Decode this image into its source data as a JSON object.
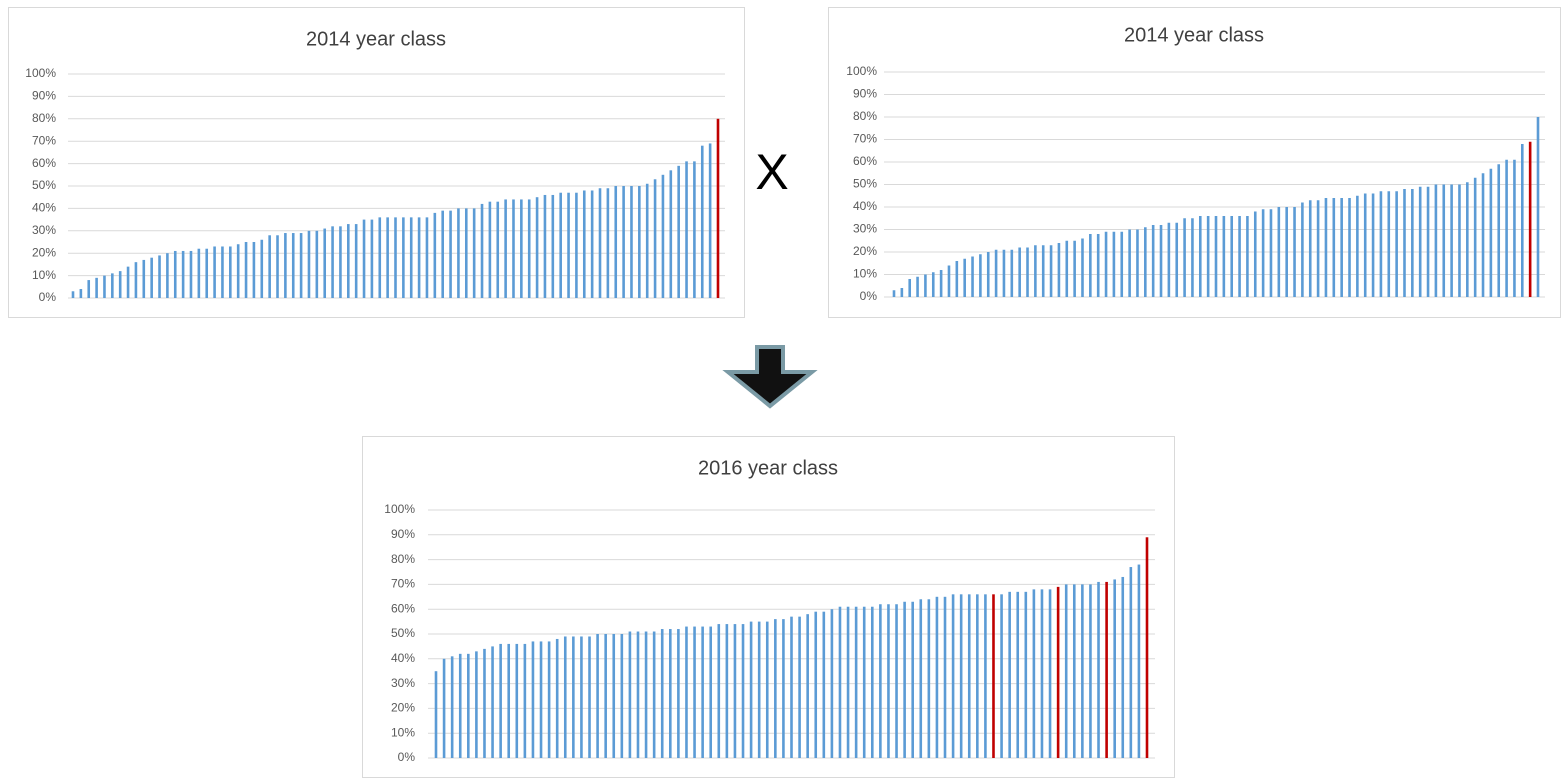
{
  "operator": "X",
  "chart_data": [
    {
      "type": "bar",
      "title": "2014 year class",
      "values": [
        3,
        4,
        8,
        9,
        10,
        11,
        12,
        14,
        16,
        17,
        18,
        19,
        20,
        21,
        21,
        21,
        22,
        22,
        23,
        23,
        23,
        24,
        25,
        25,
        26,
        28,
        28,
        29,
        29,
        29,
        30,
        30,
        31,
        32,
        32,
        33,
        33,
        35,
        35,
        36,
        36,
        36,
        36,
        36,
        36,
        36,
        38,
        39,
        39,
        40,
        40,
        40,
        42,
        43,
        43,
        44,
        44,
        44,
        44,
        45,
        46,
        46,
        47,
        47,
        47,
        48,
        48,
        49,
        49,
        50,
        50,
        50,
        50,
        51,
        53,
        55,
        57,
        59,
        61,
        61,
        68,
        69,
        80
      ],
      "colors": [
        "#5b9bd5",
        "#5b9bd5",
        "#5b9bd5",
        "#5b9bd5",
        "#5b9bd5",
        "#5b9bd5",
        "#5b9bd5",
        "#5b9bd5",
        "#5b9bd5",
        "#5b9bd5",
        "#5b9bd5",
        "#5b9bd5",
        "#5b9bd5",
        "#5b9bd5",
        "#5b9bd5",
        "#5b9bd5",
        "#5b9bd5",
        "#5b9bd5",
        "#5b9bd5",
        "#5b9bd5",
        "#5b9bd5",
        "#5b9bd5",
        "#5b9bd5",
        "#5b9bd5",
        "#5b9bd5",
        "#5b9bd5",
        "#5b9bd5",
        "#5b9bd5",
        "#5b9bd5",
        "#5b9bd5",
        "#5b9bd5",
        "#5b9bd5",
        "#5b9bd5",
        "#5b9bd5",
        "#5b9bd5",
        "#5b9bd5",
        "#5b9bd5",
        "#5b9bd5",
        "#5b9bd5",
        "#5b9bd5",
        "#5b9bd5",
        "#5b9bd5",
        "#5b9bd5",
        "#5b9bd5",
        "#5b9bd5",
        "#5b9bd5",
        "#5b9bd5",
        "#5b9bd5",
        "#5b9bd5",
        "#5b9bd5",
        "#5b9bd5",
        "#5b9bd5",
        "#5b9bd5",
        "#5b9bd5",
        "#5b9bd5",
        "#5b9bd5",
        "#5b9bd5",
        "#5b9bd5",
        "#5b9bd5",
        "#5b9bd5",
        "#5b9bd5",
        "#5b9bd5",
        "#5b9bd5",
        "#5b9bd5",
        "#5b9bd5",
        "#5b9bd5",
        "#5b9bd5",
        "#5b9bd5",
        "#5b9bd5",
        "#5b9bd5",
        "#5b9bd5",
        "#5b9bd5",
        "#5b9bd5",
        "#5b9bd5",
        "#5b9bd5",
        "#5b9bd5",
        "#5b9bd5",
        "#5b9bd5",
        "#5b9bd5",
        "#5b9bd5",
        "#5b9bd5",
        "#5b9bd5",
        "#c00000"
      ],
      "ylim": [
        0,
        100
      ],
      "yticks": [
        {
          "value": 0,
          "label": "0%"
        },
        {
          "value": 10,
          "label": "10%"
        },
        {
          "value": 20,
          "label": "20%"
        },
        {
          "value": 30,
          "label": "30%"
        },
        {
          "value": 40,
          "label": "40%"
        },
        {
          "value": 50,
          "label": "50%"
        },
        {
          "value": 60,
          "label": "60%"
        },
        {
          "value": 70,
          "label": "70%"
        },
        {
          "value": 80,
          "label": "80%"
        },
        {
          "value": 90,
          "label": "90%"
        },
        {
          "value": 100,
          "label": "100%"
        }
      ],
      "grid": true
    },
    {
      "type": "bar",
      "title": "2014 year class",
      "values": [
        3,
        4,
        8,
        9,
        10,
        11,
        12,
        14,
        16,
        17,
        18,
        19,
        20,
        21,
        21,
        21,
        22,
        22,
        23,
        23,
        23,
        24,
        25,
        25,
        26,
        28,
        28,
        29,
        29,
        29,
        30,
        30,
        31,
        32,
        32,
        33,
        33,
        35,
        35,
        36,
        36,
        36,
        36,
        36,
        36,
        36,
        38,
        39,
        39,
        40,
        40,
        40,
        42,
        43,
        43,
        44,
        44,
        44,
        44,
        45,
        46,
        46,
        47,
        47,
        47,
        48,
        48,
        49,
        49,
        50,
        50,
        50,
        50,
        51,
        53,
        55,
        57,
        59,
        61,
        61,
        68,
        69,
        80
      ],
      "colors": [
        "#5b9bd5",
        "#5b9bd5",
        "#5b9bd5",
        "#5b9bd5",
        "#5b9bd5",
        "#5b9bd5",
        "#5b9bd5",
        "#5b9bd5",
        "#5b9bd5",
        "#5b9bd5",
        "#5b9bd5",
        "#5b9bd5",
        "#5b9bd5",
        "#5b9bd5",
        "#5b9bd5",
        "#5b9bd5",
        "#5b9bd5",
        "#5b9bd5",
        "#5b9bd5",
        "#5b9bd5",
        "#5b9bd5",
        "#5b9bd5",
        "#5b9bd5",
        "#5b9bd5",
        "#5b9bd5",
        "#5b9bd5",
        "#5b9bd5",
        "#5b9bd5",
        "#5b9bd5",
        "#5b9bd5",
        "#5b9bd5",
        "#5b9bd5",
        "#5b9bd5",
        "#5b9bd5",
        "#5b9bd5",
        "#5b9bd5",
        "#5b9bd5",
        "#5b9bd5",
        "#5b9bd5",
        "#5b9bd5",
        "#5b9bd5",
        "#5b9bd5",
        "#5b9bd5",
        "#5b9bd5",
        "#5b9bd5",
        "#5b9bd5",
        "#5b9bd5",
        "#5b9bd5",
        "#5b9bd5",
        "#5b9bd5",
        "#5b9bd5",
        "#5b9bd5",
        "#5b9bd5",
        "#5b9bd5",
        "#5b9bd5",
        "#5b9bd5",
        "#5b9bd5",
        "#5b9bd5",
        "#5b9bd5",
        "#5b9bd5",
        "#5b9bd5",
        "#5b9bd5",
        "#5b9bd5",
        "#5b9bd5",
        "#5b9bd5",
        "#5b9bd5",
        "#5b9bd5",
        "#5b9bd5",
        "#5b9bd5",
        "#5b9bd5",
        "#5b9bd5",
        "#5b9bd5",
        "#5b9bd5",
        "#5b9bd5",
        "#5b9bd5",
        "#5b9bd5",
        "#5b9bd5",
        "#5b9bd5",
        "#5b9bd5",
        "#5b9bd5",
        "#5b9bd5",
        "#c00000",
        "#5b9bd5"
      ],
      "ylim": [
        0,
        100
      ],
      "yticks": [
        {
          "value": 0,
          "label": "0%"
        },
        {
          "value": 10,
          "label": "10%"
        },
        {
          "value": 20,
          "label": "20%"
        },
        {
          "value": 30,
          "label": "30%"
        },
        {
          "value": 40,
          "label": "40%"
        },
        {
          "value": 50,
          "label": "50%"
        },
        {
          "value": 60,
          "label": "60%"
        },
        {
          "value": 70,
          "label": "70%"
        },
        {
          "value": 80,
          "label": "80%"
        },
        {
          "value": 90,
          "label": "90%"
        },
        {
          "value": 100,
          "label": "100%"
        }
      ],
      "grid": true
    },
    {
      "type": "bar",
      "title": "2016 year class",
      "values": [
        35,
        40,
        41,
        42,
        42,
        43,
        44,
        45,
        46,
        46,
        46,
        46,
        47,
        47,
        47,
        48,
        49,
        49,
        49,
        49,
        50,
        50,
        50,
        50,
        51,
        51,
        51,
        51,
        52,
        52,
        52,
        53,
        53,
        53,
        53,
        54,
        54,
        54,
        54,
        55,
        55,
        55,
        56,
        56,
        57,
        57,
        58,
        59,
        59,
        60,
        61,
        61,
        61,
        61,
        61,
        62,
        62,
        62,
        63,
        63,
        64,
        64,
        65,
        65,
        66,
        66,
        66,
        66,
        66,
        66,
        66,
        67,
        67,
        67,
        68,
        68,
        68,
        69,
        70,
        70,
        70,
        70,
        71,
        71,
        72,
        73,
        77,
        78,
        89
      ],
      "colors": [
        "#5b9bd5",
        "#5b9bd5",
        "#5b9bd5",
        "#5b9bd5",
        "#5b9bd5",
        "#5b9bd5",
        "#5b9bd5",
        "#5b9bd5",
        "#5b9bd5",
        "#5b9bd5",
        "#5b9bd5",
        "#5b9bd5",
        "#5b9bd5",
        "#5b9bd5",
        "#5b9bd5",
        "#5b9bd5",
        "#5b9bd5",
        "#5b9bd5",
        "#5b9bd5",
        "#5b9bd5",
        "#5b9bd5",
        "#5b9bd5",
        "#5b9bd5",
        "#5b9bd5",
        "#5b9bd5",
        "#5b9bd5",
        "#5b9bd5",
        "#5b9bd5",
        "#5b9bd5",
        "#5b9bd5",
        "#5b9bd5",
        "#5b9bd5",
        "#5b9bd5",
        "#5b9bd5",
        "#5b9bd5",
        "#5b9bd5",
        "#5b9bd5",
        "#5b9bd5",
        "#5b9bd5",
        "#5b9bd5",
        "#5b9bd5",
        "#5b9bd5",
        "#5b9bd5",
        "#5b9bd5",
        "#5b9bd5",
        "#5b9bd5",
        "#5b9bd5",
        "#5b9bd5",
        "#5b9bd5",
        "#5b9bd5",
        "#5b9bd5",
        "#5b9bd5",
        "#5b9bd5",
        "#5b9bd5",
        "#5b9bd5",
        "#5b9bd5",
        "#5b9bd5",
        "#5b9bd5",
        "#5b9bd5",
        "#5b9bd5",
        "#5b9bd5",
        "#5b9bd5",
        "#5b9bd5",
        "#5b9bd5",
        "#5b9bd5",
        "#5b9bd5",
        "#5b9bd5",
        "#5b9bd5",
        "#5b9bd5",
        "#c00000",
        "#5b9bd5",
        "#5b9bd5",
        "#5b9bd5",
        "#5b9bd5",
        "#5b9bd5",
        "#5b9bd5",
        "#5b9bd5",
        "#c00000",
        "#5b9bd5",
        "#5b9bd5",
        "#5b9bd5",
        "#5b9bd5",
        "#5b9bd5",
        "#c00000",
        "#5b9bd5",
        "#5b9bd5",
        "#5b9bd5",
        "#5b9bd5",
        "#c00000"
      ],
      "ylim": [
        0,
        100
      ],
      "yticks": [
        {
          "value": 0,
          "label": "0%"
        },
        {
          "value": 10,
          "label": "10%"
        },
        {
          "value": 20,
          "label": "20%"
        },
        {
          "value": 30,
          "label": "30%"
        },
        {
          "value": 40,
          "label": "40%"
        },
        {
          "value": 50,
          "label": "50%"
        },
        {
          "value": 60,
          "label": "60%"
        },
        {
          "value": 70,
          "label": "70%"
        },
        {
          "value": 80,
          "label": "80%"
        },
        {
          "value": 90,
          "label": "90%"
        },
        {
          "value": 100,
          "label": "100%"
        }
      ],
      "grid": true
    }
  ]
}
